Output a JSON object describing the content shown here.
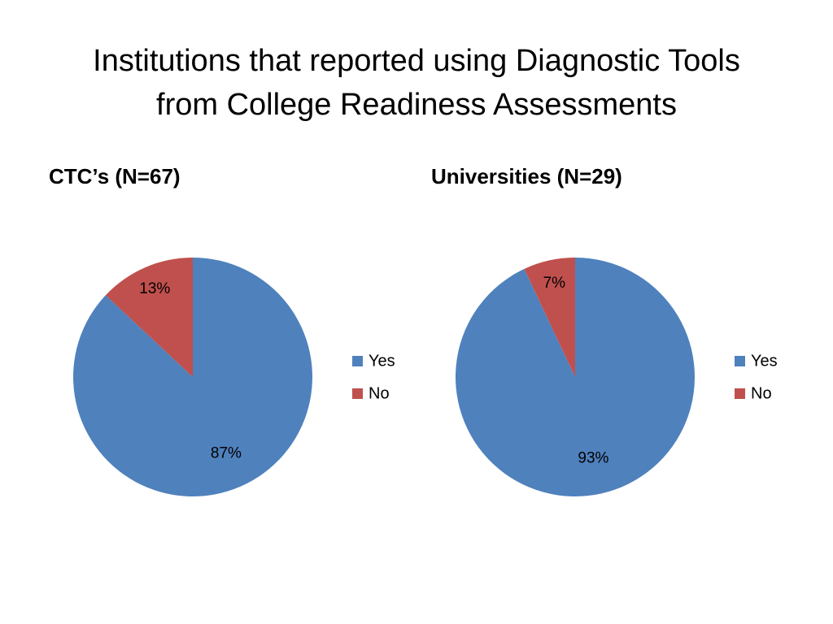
{
  "slide": {
    "title_line1": "Institutions that reported using Diagnostic Tools",
    "title_line2": "from College Readiness Assessments"
  },
  "colors": {
    "yes": "#4F81BD",
    "no": "#C0504D"
  },
  "chart_data": [
    {
      "type": "pie",
      "title": "CTC’s (N=67)",
      "categories": [
        "Yes",
        "No"
      ],
      "values": [
        87,
        13
      ],
      "labels": [
        "87%",
        "13%"
      ],
      "legend": [
        "Yes",
        "No"
      ],
      "legend_placement": "right"
    },
    {
      "type": "pie",
      "title": "Universities (N=29)",
      "categories": [
        "Yes",
        "No"
      ],
      "values": [
        93,
        7
      ],
      "labels": [
        "93%",
        "7%"
      ],
      "legend": [
        "Yes",
        "No"
      ],
      "legend_placement": "right"
    }
  ]
}
